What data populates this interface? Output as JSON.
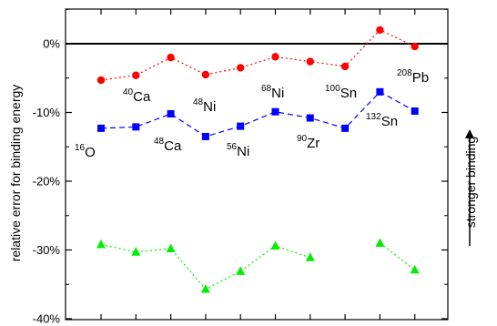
{
  "chart_data": {
    "type": "line",
    "ylabel": "relative error for binding energy",
    "side_label": "stronger binding",
    "ylim": [
      -40,
      5
    ],
    "yticks": [
      0,
      -10,
      -20,
      -30,
      -40
    ],
    "ytick_labels": [
      "0%",
      "-10%",
      "-20%",
      "-30%",
      "-40%"
    ],
    "reference_line": 0,
    "nuclei": [
      {
        "mass": "16",
        "symbol": "O"
      },
      {
        "mass": "40",
        "symbol": "Ca"
      },
      {
        "mass": "48",
        "symbol": "Ca"
      },
      {
        "mass": "48",
        "symbol": "Ni"
      },
      {
        "mass": "56",
        "symbol": "Ni"
      },
      {
        "mass": "68",
        "symbol": "Ni"
      },
      {
        "mass": "90",
        "symbol": "Zr"
      },
      {
        "mass": "100",
        "symbol": "Sn"
      },
      {
        "mass": "132",
        "symbol": "Sn"
      },
      {
        "mass": "208",
        "symbol": "Pb"
      }
    ],
    "series": [
      {
        "marker": "circle",
        "color": "#ff0000",
        "line_style": "dotted",
        "segments": [
          [
            0,
            1,
            2,
            3,
            4,
            5,
            6,
            7,
            8,
            9
          ]
        ],
        "values": [
          -5.3,
          -4.6,
          -2.0,
          -4.5,
          -3.5,
          -1.9,
          -2.6,
          -3.3,
          2.0,
          -0.4
        ]
      },
      {
        "marker": "square",
        "color": "#0000ff",
        "line_style": "dashed",
        "segments": [
          [
            0,
            1,
            2,
            3,
            4,
            5,
            6,
            7,
            8,
            9
          ]
        ],
        "values": [
          -12.3,
          -12.1,
          -10.2,
          -13.5,
          -12.0,
          -9.9,
          -10.8,
          -12.3,
          -7.0,
          -9.8
        ]
      },
      {
        "marker": "triangle",
        "color": "#00ee00",
        "line_style": "dotted",
        "segments": [
          [
            0,
            1,
            2,
            3,
            4,
            5,
            6
          ],
          [
            8,
            9
          ]
        ],
        "values": [
          -29.2,
          -30.3,
          -29.8,
          -35.7,
          -33.1,
          -29.4,
          -31.1,
          null,
          -29.0,
          -32.9
        ]
      }
    ]
  }
}
